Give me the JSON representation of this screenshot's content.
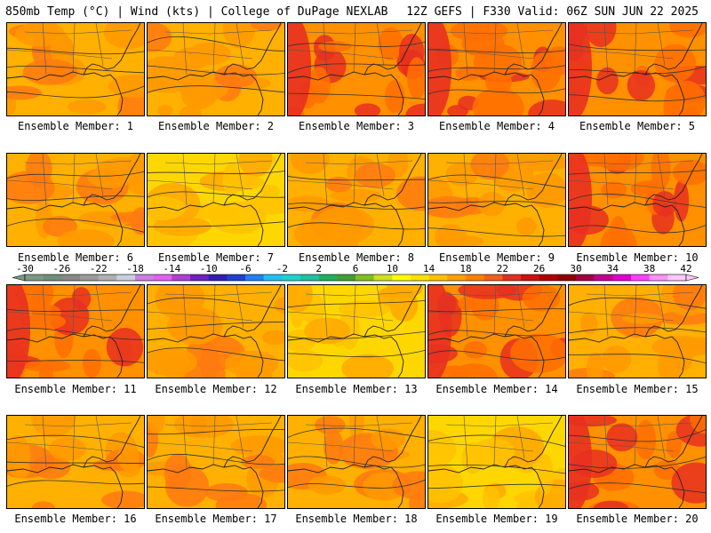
{
  "header": {
    "left": "850mb Temp (°C) | Wind (kts) | College of DuPage NEXLAB",
    "right": "12Z GEFS | F330 Valid: 06Z SUN JUN 22 2025"
  },
  "members": [
    {
      "label": "Ensemble Member: 1",
      "scheme": "warm"
    },
    {
      "label": "Ensemble Member: 2",
      "scheme": "warm"
    },
    {
      "label": "Ensemble Member: 3",
      "scheme": "hot"
    },
    {
      "label": "Ensemble Member: 4",
      "scheme": "hot"
    },
    {
      "label": "Ensemble Member: 5",
      "scheme": "hot"
    },
    {
      "label": "Ensemble Member: 6",
      "scheme": "warm"
    },
    {
      "label": "Ensemble Member: 7",
      "scheme": "mild"
    },
    {
      "label": "Ensemble Member: 8",
      "scheme": "warm"
    },
    {
      "label": "Ensemble Member: 9",
      "scheme": "warm"
    },
    {
      "label": "Ensemble Member: 10",
      "scheme": "hot"
    },
    {
      "label": "Ensemble Member: 11",
      "scheme": "hot"
    },
    {
      "label": "Ensemble Member: 12",
      "scheme": "warm"
    },
    {
      "label": "Ensemble Member: 13",
      "scheme": "mild"
    },
    {
      "label": "Ensemble Member: 14",
      "scheme": "hot"
    },
    {
      "label": "Ensemble Member: 15",
      "scheme": "warm"
    },
    {
      "label": "Ensemble Member: 16",
      "scheme": "warm"
    },
    {
      "label": "Ensemble Member: 17",
      "scheme": "warm"
    },
    {
      "label": "Ensemble Member: 18",
      "scheme": "warm"
    },
    {
      "label": "Ensemble Member: 19",
      "scheme": "mild"
    },
    {
      "label": "Ensemble Member: 20",
      "scheme": "hot"
    }
  ],
  "colorbar": {
    "labels": [
      "-30",
      "-26",
      "-22",
      "-18",
      "-14",
      "-10",
      "-6",
      "-2",
      "2",
      "6",
      "10",
      "14",
      "18",
      "22",
      "26",
      "30",
      "34",
      "38",
      "42"
    ],
    "colors": [
      "#7a9a86",
      "#6d8f7c",
      "#888888",
      "#9a9a9a",
      "#b0b0b0",
      "#c8d0e0",
      "#c880e0",
      "#e060f0",
      "#b040d0",
      "#7020c0",
      "#3020b0",
      "#2040d0",
      "#2080f0",
      "#20c0f0",
      "#20d0d0",
      "#20c0a0",
      "#20b060",
      "#40a030",
      "#80c020",
      "#d0e020",
      "#ffff00",
      "#ffe000",
      "#ffc000",
      "#ffa000",
      "#ff8000",
      "#f06020",
      "#e03020",
      "#d01010",
      "#b00000",
      "#900000",
      "#a00040",
      "#c00090",
      "#e000d0",
      "#ff40ff",
      "#ff90ff",
      "#ffc8ff"
    ]
  }
}
